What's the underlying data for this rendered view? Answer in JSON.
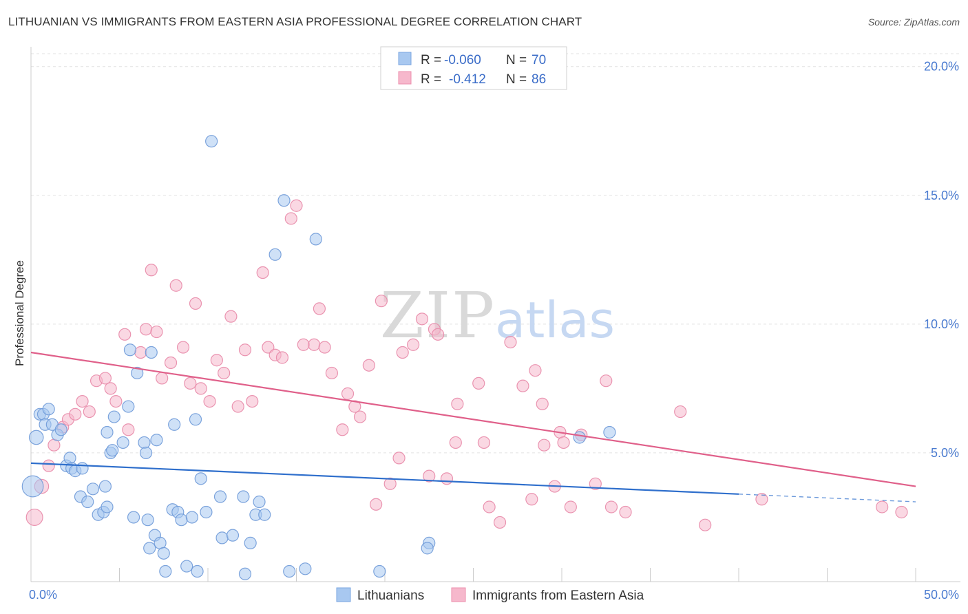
{
  "title": "LITHUANIAN VS IMMIGRANTS FROM EASTERN ASIA PROFESSIONAL DEGREE CORRELATION CHART",
  "source": "Source: ZipAtlas.com",
  "watermark": {
    "zip": "ZIP",
    "atlas": "atlas"
  },
  "chart_data": {
    "type": "scatter",
    "ylabel": "Professional Degree",
    "xlim": [
      0,
      50
    ],
    "ylim": [
      0,
      20.5
    ],
    "x_ticks": [
      {
        "value": 0,
        "label": "0.0%"
      },
      {
        "value": 50,
        "label": "50.0%"
      }
    ],
    "y_ticks": [
      {
        "value": 5,
        "label": "5.0%"
      },
      {
        "value": 10,
        "label": "10.0%"
      },
      {
        "value": 15,
        "label": "15.0%"
      },
      {
        "value": 20,
        "label": "20.0%"
      }
    ],
    "legend": [
      {
        "name": "Lithuanians",
        "r_label": "R =",
        "r_value": "-0.060",
        "n_label": "N =",
        "n_value": "70",
        "color": "#a8c8f0",
        "stroke": "#7aa6e0"
      },
      {
        "name": "Immigrants from Eastern Asia",
        "r_label": "R =",
        "r_value": "-0.412",
        "n_label": "N =",
        "n_value": "86",
        "color": "#f6b8cc",
        "stroke": "#ec8eac"
      }
    ],
    "series": [
      {
        "name": "Lithuanians",
        "fill": "#a8c8f0",
        "stroke": "#6f9ad8",
        "trend": {
          "x0": 0,
          "y0": 4.6,
          "x1": 40,
          "y1": 3.4,
          "dash_to": 50,
          "dash_y": 3.1,
          "color": "#2f6fcc"
        },
        "points": [
          [
            0.1,
            3.7,
            1.8
          ],
          [
            0.3,
            5.6,
            1.2
          ],
          [
            0.5,
            6.5,
            1
          ],
          [
            0.7,
            6.5,
            1
          ],
          [
            0.8,
            6.1,
            1
          ],
          [
            1.0,
            6.7,
            1
          ],
          [
            1.2,
            6.1,
            1
          ],
          [
            1.5,
            5.7,
            1
          ],
          [
            1.7,
            5.9,
            1
          ],
          [
            2.0,
            4.5,
            1
          ],
          [
            2.2,
            4.8,
            1
          ],
          [
            2.3,
            4.4,
            1
          ],
          [
            2.5,
            4.3,
            1
          ],
          [
            2.9,
            4.4,
            1
          ],
          [
            2.8,
            3.3,
            1
          ],
          [
            3.2,
            3.1,
            1
          ],
          [
            3.5,
            3.6,
            1
          ],
          [
            3.8,
            2.6,
            1
          ],
          [
            4.1,
            2.7,
            1
          ],
          [
            4.3,
            2.9,
            1
          ],
          [
            4.5,
            5.0,
            1
          ],
          [
            4.3,
            5.8,
            1
          ],
          [
            4.6,
            5.1,
            1
          ],
          [
            4.7,
            6.4,
            1
          ],
          [
            5.2,
            5.4,
            1
          ],
          [
            5.5,
            6.8,
            1
          ],
          [
            5.6,
            9.0,
            1
          ],
          [
            5.8,
            2.5,
            1
          ],
          [
            6.0,
            8.1,
            1
          ],
          [
            6.4,
            5.4,
            1
          ],
          [
            6.5,
            5.0,
            1
          ],
          [
            6.6,
            2.4,
            1
          ],
          [
            6.7,
            1.3,
            1
          ],
          [
            6.8,
            8.9,
            1
          ],
          [
            7.0,
            1.8,
            1
          ],
          [
            7.1,
            5.5,
            1
          ],
          [
            7.3,
            1.5,
            1
          ],
          [
            7.5,
            1.1,
            1
          ],
          [
            7.6,
            0.4,
            1
          ],
          [
            8.1,
            6.1,
            1
          ],
          [
            8.0,
            2.8,
            1
          ],
          [
            8.3,
            2.7,
            1
          ],
          [
            8.5,
            2.4,
            1
          ],
          [
            8.8,
            0.6,
            1
          ],
          [
            9.1,
            2.5,
            1
          ],
          [
            9.3,
            6.3,
            1
          ],
          [
            9.6,
            4.0,
            1
          ],
          [
            9.4,
            0.4,
            1
          ],
          [
            9.9,
            2.7,
            1
          ],
          [
            10.2,
            17.1,
            1
          ],
          [
            10.7,
            3.3,
            1
          ],
          [
            10.8,
            1.7,
            1
          ],
          [
            11.4,
            1.8,
            1
          ],
          [
            12.0,
            3.3,
            1
          ],
          [
            12.1,
            0.3,
            1
          ],
          [
            12.7,
            2.6,
            1
          ],
          [
            12.9,
            3.1,
            1
          ],
          [
            12.4,
            1.5,
            1
          ],
          [
            13.2,
            2.6,
            1
          ],
          [
            13.8,
            12.7,
            1
          ],
          [
            14.3,
            14.8,
            1
          ],
          [
            14.6,
            0.4,
            1
          ],
          [
            15.5,
            0.5,
            1
          ],
          [
            16.1,
            13.3,
            1
          ],
          [
            19.7,
            0.4,
            1
          ],
          [
            22.5,
            1.5,
            1
          ],
          [
            22.4,
            1.3,
            1
          ],
          [
            31.0,
            5.6,
            1
          ],
          [
            32.7,
            5.8,
            1
          ],
          [
            4.2,
            3.7,
            1
          ]
        ]
      },
      {
        "name": "Immigrants from Eastern Asia",
        "fill": "#f6b8cc",
        "stroke": "#e88aa8",
        "trend": {
          "x0": 0,
          "y0": 8.9,
          "x1": 50,
          "y1": 3.7,
          "color": "#e0608a"
        },
        "points": [
          [
            0.2,
            2.5,
            1.4
          ],
          [
            0.6,
            3.7,
            1.2
          ],
          [
            1.0,
            4.5,
            1
          ],
          [
            1.3,
            5.3,
            1
          ],
          [
            1.8,
            6.0,
            1
          ],
          [
            2.1,
            6.3,
            1
          ],
          [
            2.5,
            6.5,
            1
          ],
          [
            2.9,
            7.0,
            1
          ],
          [
            3.3,
            6.6,
            1
          ],
          [
            3.7,
            7.8,
            1
          ],
          [
            4.2,
            7.9,
            1
          ],
          [
            4.5,
            7.5,
            1
          ],
          [
            4.8,
            7.0,
            1
          ],
          [
            5.3,
            9.6,
            1
          ],
          [
            5.5,
            5.9,
            1
          ],
          [
            6.2,
            8.9,
            1
          ],
          [
            6.5,
            9.8,
            1
          ],
          [
            6.8,
            12.1,
            1
          ],
          [
            7.1,
            9.7,
            1
          ],
          [
            7.4,
            7.9,
            1
          ],
          [
            7.9,
            8.5,
            1
          ],
          [
            8.2,
            11.5,
            1
          ],
          [
            8.6,
            9.1,
            1
          ],
          [
            9.0,
            7.7,
            1
          ],
          [
            9.3,
            10.8,
            1
          ],
          [
            9.6,
            7.5,
            1
          ],
          [
            10.1,
            7.0,
            1
          ],
          [
            10.5,
            8.6,
            1
          ],
          [
            10.9,
            8.1,
            1
          ],
          [
            11.3,
            10.3,
            1
          ],
          [
            11.7,
            6.8,
            1
          ],
          [
            12.1,
            9.0,
            1
          ],
          [
            12.5,
            7.0,
            1
          ],
          [
            13.1,
            12.0,
            1
          ],
          [
            13.4,
            9.1,
            1
          ],
          [
            13.8,
            8.8,
            1
          ],
          [
            14.2,
            8.7,
            1
          ],
          [
            14.7,
            14.1,
            1
          ],
          [
            15.0,
            14.6,
            1
          ],
          [
            15.4,
            9.2,
            1
          ],
          [
            16.0,
            9.2,
            1
          ],
          [
            16.3,
            10.6,
            1
          ],
          [
            16.6,
            9.1,
            1
          ],
          [
            17.0,
            8.1,
            1
          ],
          [
            17.6,
            5.9,
            1
          ],
          [
            17.9,
            7.3,
            1
          ],
          [
            18.3,
            6.8,
            1
          ],
          [
            18.6,
            6.4,
            1
          ],
          [
            19.1,
            8.4,
            1
          ],
          [
            19.5,
            3.0,
            1
          ],
          [
            19.8,
            10.9,
            1
          ],
          [
            20.3,
            3.8,
            1
          ],
          [
            20.8,
            4.8,
            1
          ],
          [
            21.0,
            8.9,
            1
          ],
          [
            21.6,
            9.2,
            1
          ],
          [
            22.1,
            10.2,
            1
          ],
          [
            22.5,
            4.1,
            1
          ],
          [
            22.8,
            9.8,
            1
          ],
          [
            23.0,
            9.6,
            1
          ],
          [
            23.5,
            4.0,
            1
          ],
          [
            24.1,
            6.9,
            1
          ],
          [
            24.0,
            5.4,
            1
          ],
          [
            25.3,
            7.7,
            1
          ],
          [
            25.6,
            5.4,
            1
          ],
          [
            25.9,
            2.9,
            1
          ],
          [
            26.5,
            2.3,
            1
          ],
          [
            27.1,
            9.3,
            1
          ],
          [
            27.8,
            7.6,
            1
          ],
          [
            28.3,
            3.2,
            1
          ],
          [
            28.5,
            8.2,
            1
          ],
          [
            28.9,
            6.9,
            1
          ],
          [
            29.0,
            5.3,
            1
          ],
          [
            29.6,
            3.7,
            1
          ],
          [
            29.9,
            5.8,
            1
          ],
          [
            30.1,
            5.4,
            1
          ],
          [
            30.5,
            2.9,
            1
          ],
          [
            31.1,
            5.7,
            1
          ],
          [
            31.9,
            3.8,
            1
          ],
          [
            32.5,
            7.8,
            1
          ],
          [
            32.8,
            2.9,
            1
          ],
          [
            33.6,
            2.7,
            1
          ],
          [
            36.7,
            6.6,
            1
          ],
          [
            38.1,
            2.2,
            1
          ],
          [
            41.3,
            3.2,
            1
          ],
          [
            48.1,
            2.9,
            1
          ],
          [
            49.2,
            2.7,
            1
          ]
        ]
      }
    ]
  }
}
